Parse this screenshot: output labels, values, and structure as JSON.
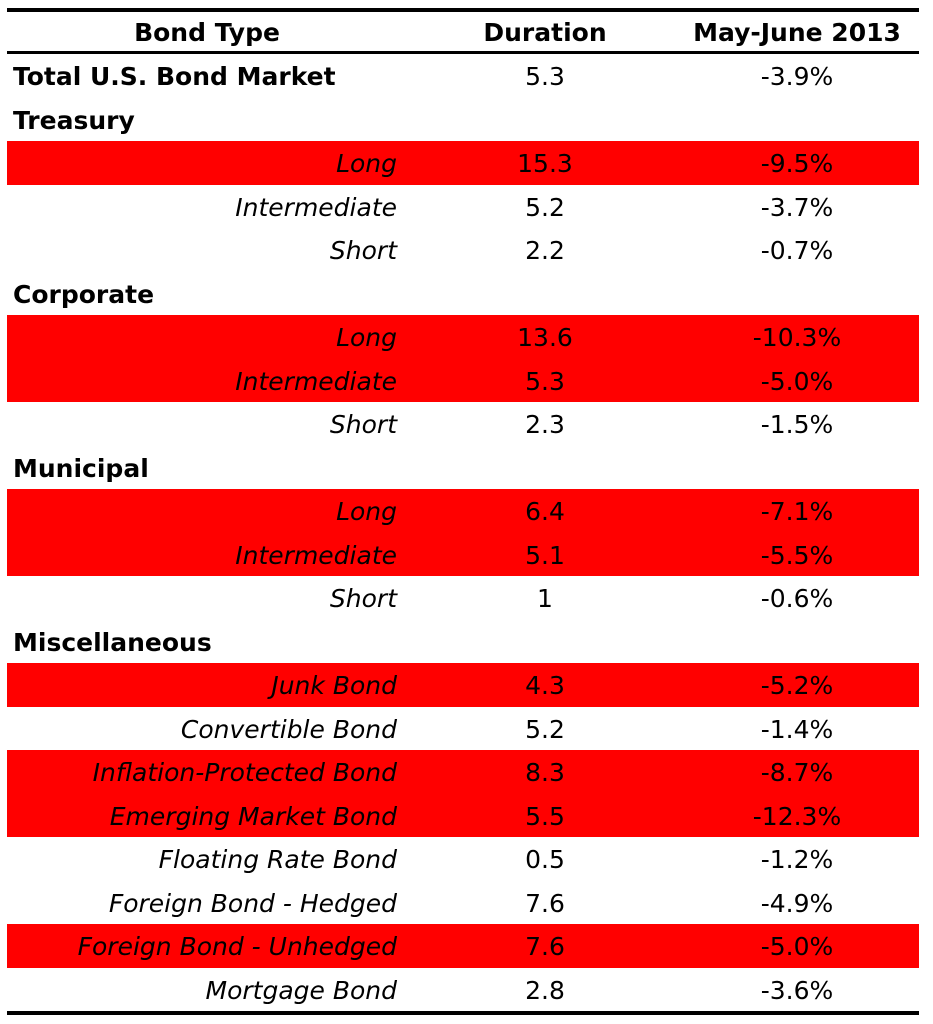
{
  "chart_data": {
    "type": "table",
    "columns": [
      "Bond Type",
      "Duration",
      "May-June 2013"
    ],
    "highlight_color": "#ff0000",
    "rows": [
      {
        "label": "Total U.S. Bond Market",
        "kind": "group",
        "duration": "5.3",
        "return": "-3.9%",
        "highlight": false
      },
      {
        "label": "Treasury",
        "kind": "group",
        "duration": "",
        "return": "",
        "highlight": false
      },
      {
        "label": "Long",
        "kind": "sub",
        "duration": "15.3",
        "return": "-9.5%",
        "highlight": true
      },
      {
        "label": "Intermediate",
        "kind": "sub",
        "duration": "5.2",
        "return": "-3.7%",
        "highlight": false
      },
      {
        "label": "Short",
        "kind": "sub",
        "duration": "2.2",
        "return": "-0.7%",
        "highlight": false
      },
      {
        "label": "Corporate",
        "kind": "group",
        "duration": "",
        "return": "",
        "highlight": false
      },
      {
        "label": "Long",
        "kind": "sub",
        "duration": "13.6",
        "return": "-10.3%",
        "highlight": true
      },
      {
        "label": "Intermediate",
        "kind": "sub",
        "duration": "5.3",
        "return": "-5.0%",
        "highlight": true
      },
      {
        "label": "Short",
        "kind": "sub",
        "duration": "2.3",
        "return": "-1.5%",
        "highlight": false
      },
      {
        "label": "Municipal",
        "kind": "group",
        "duration": "",
        "return": "",
        "highlight": false
      },
      {
        "label": "Long",
        "kind": "sub",
        "duration": "6.4",
        "return": "-7.1%",
        "highlight": true
      },
      {
        "label": "Intermediate",
        "kind": "sub",
        "duration": "5.1",
        "return": "-5.5%",
        "highlight": true
      },
      {
        "label": "Short",
        "kind": "sub",
        "duration": "1",
        "return": "-0.6%",
        "highlight": false
      },
      {
        "label": "Miscellaneous",
        "kind": "group",
        "duration": "",
        "return": "",
        "highlight": false
      },
      {
        "label": "Junk Bond",
        "kind": "sub",
        "duration": "4.3",
        "return": "-5.2%",
        "highlight": true
      },
      {
        "label": "Convertible Bond",
        "kind": "sub",
        "duration": "5.2",
        "return": "-1.4%",
        "highlight": false
      },
      {
        "label": "Inflation-Protected Bond",
        "kind": "sub",
        "duration": "8.3",
        "return": "-8.7%",
        "highlight": true
      },
      {
        "label": "Emerging Market Bond",
        "kind": "sub",
        "duration": "5.5",
        "return": "-12.3%",
        "highlight": true
      },
      {
        "label": "Floating Rate Bond",
        "kind": "sub",
        "duration": "0.5",
        "return": "-1.2%",
        "highlight": false
      },
      {
        "label": "Foreign Bond - Hedged",
        "kind": "sub",
        "duration": "7.6",
        "return": "-4.9%",
        "highlight": false
      },
      {
        "label": "Foreign Bond - Unhedged",
        "kind": "sub",
        "duration": "7.6",
        "return": "-5.0%",
        "highlight": true
      },
      {
        "label": "Mortgage Bond",
        "kind": "sub",
        "duration": "2.8",
        "return": "-3.6%",
        "highlight": false
      }
    ]
  }
}
